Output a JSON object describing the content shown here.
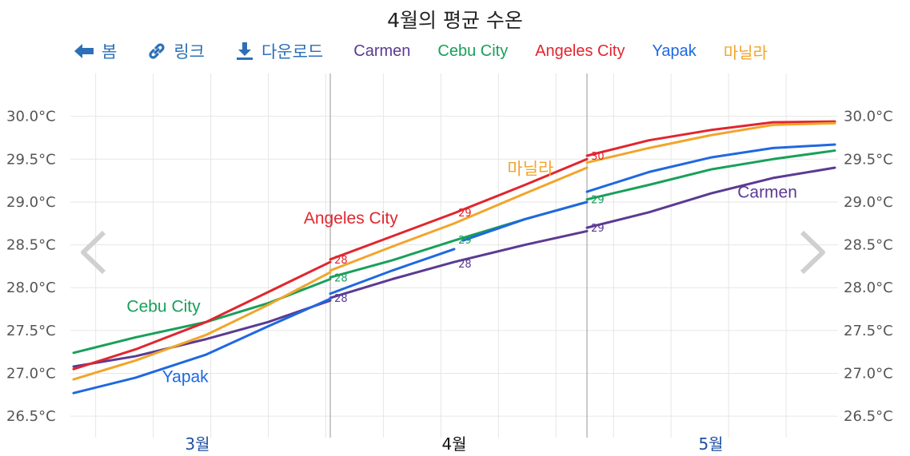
{
  "title": "4월의 평균 수온",
  "toolbar": {
    "home_label": "봄",
    "link_label": "링크",
    "download_label": "다운로드"
  },
  "icons": {
    "home": "arrow-left-icon",
    "link": "link-icon",
    "download": "download-icon",
    "prev": "chevron-left-icon",
    "next": "chevron-right-icon"
  },
  "colors": {
    "accent": "#2d6fb6",
    "Carmen": "#5b3a93",
    "Cebu City": "#18a05a",
    "Angeles City": "#e0262e",
    "Yapak": "#1f68e0",
    "마닐라": "#f2a52a"
  },
  "chart_data": {
    "type": "line",
    "title": "4월의 평균 수온",
    "y_unit": "°C",
    "ylim": [
      26.25,
      30.5
    ],
    "y_ticks": [
      26.5,
      27.0,
      27.5,
      28.0,
      28.5,
      29.0,
      29.5,
      30.0
    ],
    "y_tick_labels": [
      "26.5°C",
      "27.0°C",
      "27.5°C",
      "28.0°C",
      "28.5°C",
      "29.0°C",
      "29.5°C",
      "30.0°C"
    ],
    "x_range": [
      1,
      87
    ],
    "grid": true,
    "month_labels": [
      "3월",
      "4월",
      "5월"
    ],
    "month_label_x": [
      15,
      44,
      73
    ],
    "highlighted_month": "4월",
    "gridline_x": [
      3.5,
      10,
      16.5,
      23,
      29.5,
      36,
      42.5,
      49,
      55.5,
      62,
      68.5,
      75,
      81.5
    ],
    "boundaries_x": [
      30,
      59
    ],
    "legend_order": [
      "Carmen",
      "Cebu City",
      "Angeles City",
      "Yapak",
      "마닐라"
    ],
    "series": [
      {
        "name": "Carmen",
        "segments": [
          {
            "x": [
              1,
              8,
              16,
              23,
              30
            ],
            "y": [
              27.08,
              27.2,
              27.4,
              27.6,
              27.85
            ]
          },
          {
            "x": [
              30,
              37,
              44,
              52,
              59
            ],
            "y": [
              27.88,
              28.1,
              28.3,
              28.5,
              28.66
            ]
          },
          {
            "x": [
              59,
              66,
              73,
              80,
              87
            ],
            "y": [
              28.7,
              28.88,
              29.1,
              29.28,
              29.4
            ]
          }
        ],
        "value_labels": [
          {
            "x": 31,
            "y": 27.88,
            "text": "28"
          },
          {
            "x": 45,
            "y": 28.28,
            "text": "28"
          },
          {
            "x": 60,
            "y": 28.7,
            "text": "29"
          }
        ],
        "label": "Carmen",
        "label_x": 76,
        "label_y": 29.05
      },
      {
        "name": "Cebu City",
        "segments": [
          {
            "x": [
              1,
              8,
              16,
              23,
              30
            ],
            "y": [
              27.24,
              27.42,
              27.6,
              27.82,
              28.1
            ]
          },
          {
            "x": [
              30,
              37,
              44,
              52,
              59
            ],
            "y": [
              28.12,
              28.32,
              28.55,
              28.8,
              29.0
            ]
          },
          {
            "x": [
              59,
              66,
              73,
              80,
              87
            ],
            "y": [
              29.03,
              29.2,
              29.38,
              29.5,
              29.6
            ]
          }
        ],
        "value_labels": [
          {
            "x": 31,
            "y": 28.12,
            "text": "28"
          },
          {
            "x": 45,
            "y": 28.56,
            "text": "29"
          },
          {
            "x": 60,
            "y": 29.03,
            "text": "29"
          }
        ],
        "label": "Cebu City",
        "label_x": 7,
        "label_y": 27.72
      },
      {
        "name": "Angeles City",
        "segments": [
          {
            "x": [
              1,
              8,
              16,
              23,
              30
            ],
            "y": [
              27.05,
              27.28,
              27.6,
              27.95,
              28.3
            ]
          },
          {
            "x": [
              30,
              37,
              44,
              52,
              59
            ],
            "y": [
              28.33,
              28.6,
              28.87,
              29.2,
              29.5
            ]
          },
          {
            "x": [
              59,
              66,
              73,
              80,
              87
            ],
            "y": [
              29.54,
              29.72,
              29.84,
              29.93,
              29.94
            ]
          }
        ],
        "value_labels": [
          {
            "x": 31,
            "y": 28.33,
            "text": "28"
          },
          {
            "x": 45,
            "y": 28.88,
            "text": "29"
          },
          {
            "x": 60,
            "y": 29.54,
            "text": "30"
          }
        ],
        "label": "Angeles City",
        "label_x": 27,
        "label_y": 28.75
      },
      {
        "name": "Yapak",
        "segments": [
          {
            "x": [
              1,
              8,
              16,
              23,
              30
            ],
            "y": [
              26.77,
              26.95,
              27.22,
              27.55,
              27.87
            ]
          },
          {
            "x": [
              30,
              37,
              44
            ],
            "y": [
              27.93,
              28.2,
              28.45
            ]
          },
          {
            "x": [
              45,
              52,
              59
            ],
            "y": [
              28.55,
              28.8,
              29.0
            ]
          },
          {
            "x": [
              59,
              66,
              73,
              80,
              87
            ],
            "y": [
              29.12,
              29.35,
              29.52,
              29.63,
              29.67
            ]
          }
        ],
        "value_labels": [],
        "label": "Yapak",
        "label_x": 11,
        "label_y": 26.9
      },
      {
        "name": "마닐라",
        "segments": [
          {
            "x": [
              1,
              8,
              16,
              23,
              30
            ],
            "y": [
              26.93,
              27.15,
              27.45,
              27.8,
              28.18
            ]
          },
          {
            "x": [
              30,
              37,
              44,
              52,
              59
            ],
            "y": [
              28.2,
              28.48,
              28.75,
              29.1,
              29.4
            ]
          },
          {
            "x": [
              59,
              66,
              73,
              80,
              87
            ],
            "y": [
              29.46,
              29.63,
              29.78,
              29.9,
              29.92
            ]
          }
        ],
        "value_labels": [],
        "label": "마닐라",
        "label_x": 50,
        "label_y": 29.32
      }
    ]
  }
}
